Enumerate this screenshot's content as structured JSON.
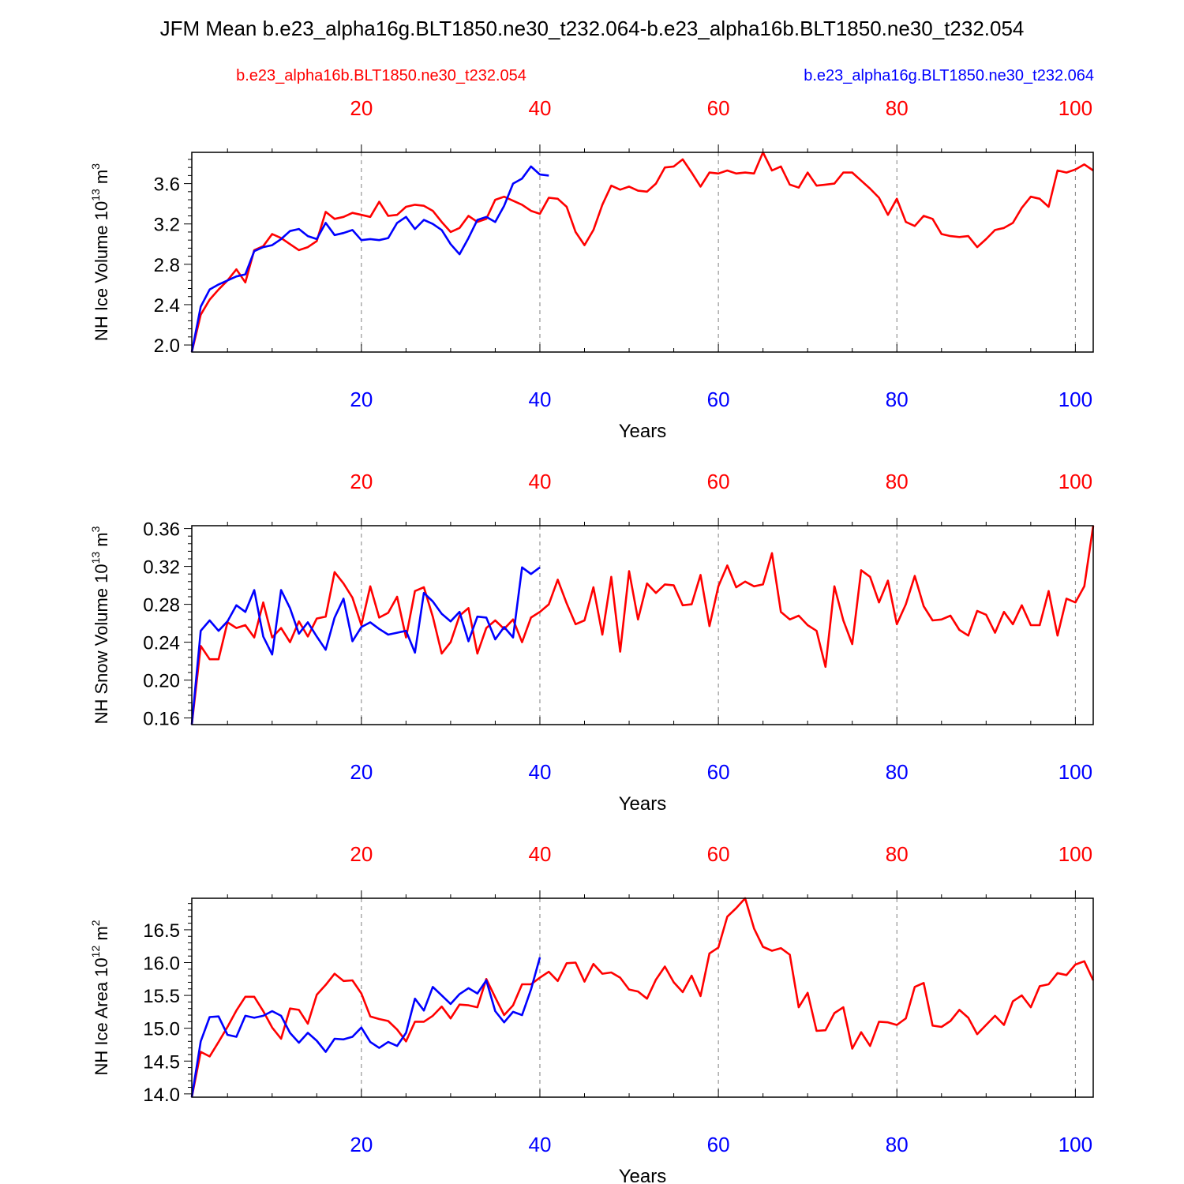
{
  "title": "JFM Mean b.e23_alpha16g.BLT1850.ne30_t232.064-b.e23_alpha16b.BLT1850.ne30_t232.054",
  "legend": {
    "left": {
      "text": "b.e23_alpha16b.BLT1850.ne30_t232.054",
      "color": "#ff0000"
    },
    "right": {
      "text": "b.e23_alpha16g.BLT1850.ne30_t232.064",
      "color": "#0000ff"
    }
  },
  "colors": {
    "red_series": "#ff0000",
    "blue_series": "#0000ff",
    "axis": "#000000",
    "grid": "#808080"
  },
  "chart_data": [
    {
      "type": "line",
      "ylabel": "NH Ice Volume 10^13 m^3",
      "ylabel_main": "NH Ice Volume 10",
      "ylabel_exp": "13",
      "ylabel_unit": " m",
      "ylabel_unit_exp": "3",
      "xlabel": "Years",
      "xlim": [
        1,
        102
      ],
      "ylim": [
        1.93,
        3.91
      ],
      "yticks": [
        2.0,
        2.4,
        2.8,
        3.2,
        3.6
      ],
      "yticklabels": [
        "2.0",
        "2.4",
        "2.8",
        "3.2",
        "3.6"
      ],
      "xticks": [
        20,
        40,
        60,
        80,
        100
      ],
      "xticklabels": [
        "20",
        "40",
        "60",
        "80",
        "100"
      ],
      "grid": "vertical dashed at x ticks",
      "series": [
        {
          "name": "b.e23_alpha16b.BLT1850.ne30_t232.054",
          "color": "#ff0000",
          "x_start": 1,
          "values": [
            1.93,
            2.3,
            2.45,
            2.55,
            2.64,
            2.75,
            2.62,
            2.94,
            2.98,
            3.1,
            3.06,
            3.0,
            2.94,
            2.97,
            3.03,
            3.32,
            3.25,
            3.27,
            3.31,
            3.29,
            3.27,
            3.42,
            3.28,
            3.29,
            3.37,
            3.39,
            3.38,
            3.33,
            3.22,
            3.12,
            3.16,
            3.28,
            3.22,
            3.25,
            3.44,
            3.47,
            3.43,
            3.39,
            3.33,
            3.3,
            3.46,
            3.45,
            3.37,
            3.12,
            2.99,
            3.14,
            3.39,
            3.58,
            3.54,
            3.57,
            3.53,
            3.52,
            3.6,
            3.76,
            3.77,
            3.84,
            3.71,
            3.57,
            3.71,
            3.7,
            3.73,
            3.7,
            3.71,
            3.7,
            3.91,
            3.73,
            3.77,
            3.59,
            3.56,
            3.71,
            3.58,
            3.59,
            3.6,
            3.71,
            3.71,
            3.63,
            3.55,
            3.46,
            3.29,
            3.45,
            3.22,
            3.18,
            3.28,
            3.25,
            3.1,
            3.08,
            3.07,
            3.08,
            2.97,
            3.05,
            3.14,
            3.16,
            3.21,
            3.36,
            3.47,
            3.45,
            3.37,
            3.73,
            3.71,
            3.74,
            3.79,
            3.73
          ]
        },
        {
          "name": "b.e23_alpha16g.BLT1850.ne30_t232.064",
          "color": "#0000ff",
          "x_start": 1,
          "values": [
            1.93,
            2.38,
            2.55,
            2.6,
            2.64,
            2.68,
            2.7,
            2.93,
            2.97,
            2.99,
            3.05,
            3.13,
            3.15,
            3.08,
            3.05,
            3.21,
            3.09,
            3.11,
            3.14,
            3.04,
            3.05,
            3.04,
            3.06,
            3.21,
            3.27,
            3.15,
            3.24,
            3.2,
            3.14,
            3.0,
            2.9,
            3.06,
            3.24,
            3.27,
            3.22,
            3.38,
            3.6,
            3.65,
            3.77,
            3.69,
            3.68
          ]
        }
      ]
    },
    {
      "type": "line",
      "ylabel": "NH Snow Volume 10^13 m^3",
      "ylabel_main": "NH Snow Volume 10",
      "ylabel_exp": "13",
      "ylabel_unit": " m",
      "ylabel_unit_exp": "3",
      "xlabel": "Years",
      "xlim": [
        1,
        102
      ],
      "ylim": [
        0.153,
        0.363
      ],
      "yticks": [
        0.16,
        0.2,
        0.24,
        0.28,
        0.32,
        0.36
      ],
      "yticklabels": [
        "0.16",
        "0.20",
        "0.24",
        "0.28",
        "0.32",
        "0.36"
      ],
      "xticks": [
        20,
        40,
        60,
        80,
        100
      ],
      "xticklabels": [
        "20",
        "40",
        "60",
        "80",
        "100"
      ],
      "grid": "vertical dashed at x ticks",
      "series": [
        {
          "name": "b.e23_alpha16b.BLT1850.ne30_t232.054",
          "color": "#ff0000",
          "x_start": 1,
          "values": [
            0.153,
            0.236,
            0.222,
            0.222,
            0.261,
            0.255,
            0.258,
            0.245,
            0.282,
            0.245,
            0.255,
            0.24,
            0.262,
            0.246,
            0.265,
            0.267,
            0.314,
            0.302,
            0.287,
            0.258,
            0.299,
            0.266,
            0.271,
            0.288,
            0.245,
            0.294,
            0.298,
            0.267,
            0.228,
            0.24,
            0.268,
            0.276,
            0.228,
            0.255,
            0.263,
            0.254,
            0.264,
            0.24,
            0.266,
            0.272,
            0.28,
            0.306,
            0.281,
            0.259,
            0.263,
            0.298,
            0.248,
            0.309,
            0.23,
            0.315,
            0.264,
            0.302,
            0.292,
            0.301,
            0.3,
            0.279,
            0.28,
            0.311,
            0.257,
            0.299,
            0.321,
            0.298,
            0.304,
            0.299,
            0.301,
            0.334,
            0.272,
            0.264,
            0.268,
            0.258,
            0.252,
            0.214,
            0.299,
            0.263,
            0.238,
            0.316,
            0.309,
            0.282,
            0.305,
            0.259,
            0.28,
            0.31,
            0.278,
            0.263,
            0.264,
            0.268,
            0.253,
            0.247,
            0.273,
            0.269,
            0.25,
            0.272,
            0.259,
            0.279,
            0.258,
            0.258,
            0.294,
            0.247,
            0.286,
            0.282,
            0.299,
            0.363
          ]
        },
        {
          "name": "b.e23_alpha16g.BLT1850.ne30_t232.064",
          "color": "#0000ff",
          "x_start": 1,
          "values": [
            0.153,
            0.252,
            0.263,
            0.252,
            0.262,
            0.279,
            0.272,
            0.295,
            0.246,
            0.227,
            0.295,
            0.276,
            0.249,
            0.261,
            0.246,
            0.232,
            0.266,
            0.286,
            0.241,
            0.256,
            0.261,
            0.254,
            0.248,
            0.25,
            0.252,
            0.229,
            0.292,
            0.283,
            0.27,
            0.262,
            0.272,
            0.241,
            0.267,
            0.266,
            0.243,
            0.256,
            0.245,
            0.319,
            0.312,
            0.319
          ]
        }
      ]
    },
    {
      "type": "line",
      "ylabel": "NH Ice Area 10^12 m^2",
      "ylabel_main": "NH Ice Area 10",
      "ylabel_exp": "12",
      "ylabel_unit": " m",
      "ylabel_unit_exp": "2",
      "xlabel": "Years",
      "xlim": [
        1,
        102
      ],
      "ylim": [
        13.95,
        16.98
      ],
      "yticks": [
        14.0,
        14.5,
        15.0,
        15.5,
        16.0,
        16.5
      ],
      "yticklabels": [
        "14.0",
        "14.5",
        "15.0",
        "15.5",
        "16.0",
        "16.5"
      ],
      "xticks": [
        20,
        40,
        60,
        80,
        100
      ],
      "xticklabels": [
        "20",
        "40",
        "60",
        "80",
        "100"
      ],
      "grid": "vertical dashed at x ticks",
      "series": [
        {
          "name": "b.e23_alpha16b.BLT1850.ne30_t232.054",
          "color": "#ff0000",
          "x_start": 1,
          "values": [
            13.95,
            14.64,
            14.57,
            14.79,
            15.02,
            15.27,
            15.48,
            15.48,
            15.26,
            15.01,
            14.84,
            15.3,
            15.28,
            15.07,
            15.51,
            15.66,
            15.83,
            15.72,
            15.73,
            15.53,
            15.18,
            15.14,
            15.11,
            14.98,
            14.8,
            15.1,
            15.1,
            15.19,
            15.33,
            15.15,
            15.36,
            15.35,
            15.32,
            15.75,
            15.47,
            15.2,
            15.35,
            15.67,
            15.67,
            15.77,
            15.86,
            15.72,
            15.99,
            16.0,
            15.71,
            15.98,
            15.83,
            15.85,
            15.77,
            15.59,
            15.56,
            15.45,
            15.74,
            15.94,
            15.7,
            15.55,
            15.8,
            15.49,
            16.14,
            16.23,
            16.7,
            16.83,
            16.98,
            16.52,
            16.24,
            16.18,
            16.22,
            16.12,
            15.32,
            15.54,
            14.96,
            14.97,
            15.23,
            15.32,
            14.69,
            14.94,
            14.73,
            15.1,
            15.09,
            15.05,
            15.15,
            15.63,
            15.69,
            15.04,
            15.02,
            15.11,
            15.28,
            15.16,
            14.91,
            15.05,
            15.19,
            15.05,
            15.41,
            15.5,
            15.32,
            15.64,
            15.67,
            15.84,
            15.81,
            15.97,
            16.02,
            15.73
          ]
        },
        {
          "name": "b.e23_alpha16g.BLT1850.ne30_t232.064",
          "color": "#0000ff",
          "x_start": 1,
          "values": [
            13.95,
            14.8,
            15.17,
            15.18,
            14.9,
            14.87,
            15.19,
            15.16,
            15.19,
            15.26,
            15.19,
            14.93,
            14.78,
            14.93,
            14.81,
            14.64,
            14.84,
            14.83,
            14.87,
            15.01,
            14.79,
            14.7,
            14.79,
            14.73,
            14.93,
            15.45,
            15.27,
            15.63,
            15.5,
            15.37,
            15.52,
            15.61,
            15.53,
            15.73,
            15.26,
            15.09,
            15.25,
            15.2,
            15.59,
            16.08
          ]
        }
      ]
    }
  ]
}
